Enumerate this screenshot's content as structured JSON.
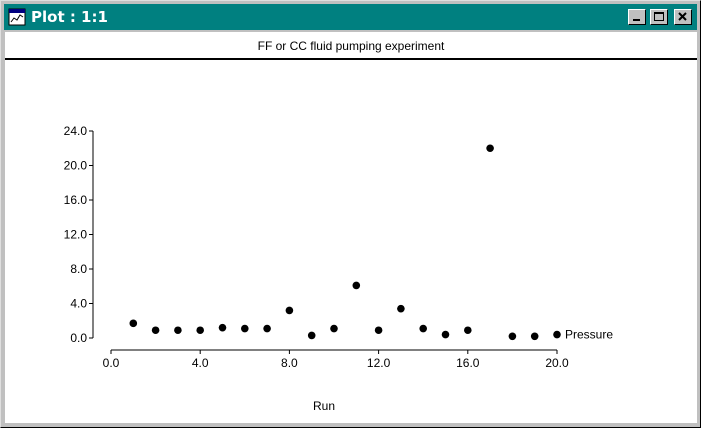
{
  "window": {
    "title": "Plot : 1:1",
    "icon": "plot-window-icon",
    "buttons": [
      "minimize-icon",
      "maximize-icon",
      "close-icon"
    ]
  },
  "chart_data": {
    "type": "scatter",
    "title": "FF or CC fluid pumping experiment",
    "xlabel": "Run",
    "ylabel": "",
    "xlim": [
      0,
      20
    ],
    "ylim": [
      0,
      24
    ],
    "x_ticks": [
      "0.0",
      "4.0",
      "8.0",
      "12.0",
      "16.0",
      "20.0"
    ],
    "y_ticks": [
      "0.0",
      "4.0",
      "8.0",
      "12.0",
      "16.0",
      "20.0",
      "24.0"
    ],
    "grid": false,
    "series": [
      {
        "name": "Pressure",
        "color": "#000000",
        "points": [
          [
            1,
            1.7
          ],
          [
            2,
            0.9
          ],
          [
            3,
            0.9
          ],
          [
            4,
            0.9
          ],
          [
            5,
            1.2
          ],
          [
            6,
            1.1
          ],
          [
            7,
            1.1
          ],
          [
            8,
            3.2
          ],
          [
            9,
            0.3
          ],
          [
            10,
            1.1
          ],
          [
            11,
            6.1
          ],
          [
            12,
            0.9
          ],
          [
            13,
            3.4
          ],
          [
            14,
            1.1
          ],
          [
            15,
            0.4
          ],
          [
            16,
            0.9
          ],
          [
            17,
            22.0
          ],
          [
            18,
            0.2
          ],
          [
            19,
            0.2
          ],
          [
            20,
            0.4
          ]
        ]
      }
    ]
  }
}
